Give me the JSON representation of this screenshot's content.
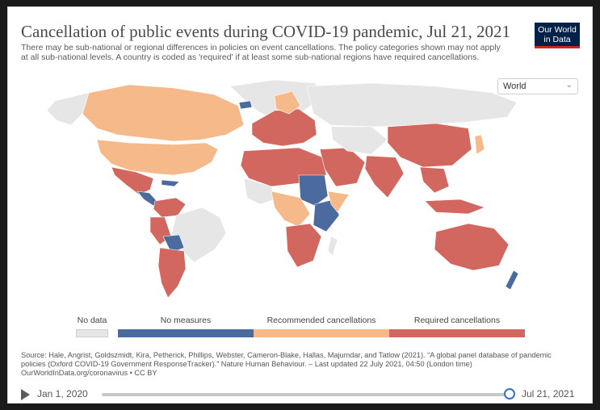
{
  "header": {
    "title": "Cancellation of public events during COVID-19 pandemic, Jul 21, 2021",
    "subtitle": "There may be sub-national or regional differences in policies on event cancellations. The policy categories shown may not apply at all sub-national levels. A country is coded as 'required' if at least some sub-national regions have required cancellations.",
    "logo_line1": "Our World",
    "logo_line2": "in Data"
  },
  "region_select": {
    "value": "World",
    "icon": "chevron-down-icon"
  },
  "legend": [
    {
      "label": "No data",
      "color": "#e6e6e6"
    },
    {
      "label": "No measures",
      "color": "#4b6a9e"
    },
    {
      "label": "Recommended cancellations",
      "color": "#f5b98a"
    },
    {
      "label": "Required cancellations",
      "color": "#d2675f"
    }
  ],
  "source": "Source: Hale, Angrist, Goldszmidt, Kira, Petherick, Phillips, Webster, Cameron-Blake, Hallas, Majumdar, and Tatlow (2021). “A global panel database of pandemic policies (Oxford COVID-19 Government ResponseTracker).” Nature Human Behaviour. – Last updated 22 July 2021, 04:50 (London time) OurWorldInData.org/coronavirus • CC BY",
  "timeline": {
    "start": "Jan 1, 2020",
    "end": "Jul 21, 2021",
    "position": 1.0,
    "play_icon": "play-icon"
  }
}
